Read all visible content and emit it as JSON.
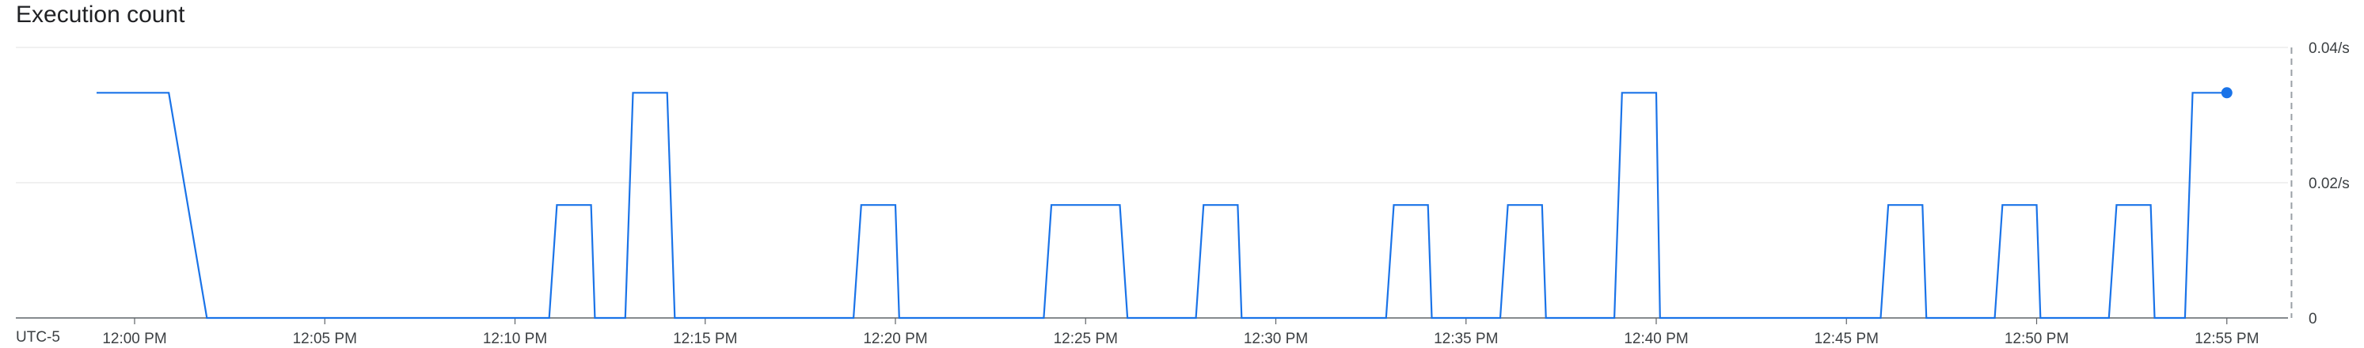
{
  "title": "Execution count",
  "timezone_label": "UTC-5",
  "chart_data": {
    "type": "line",
    "title": "Execution count",
    "xlabel": "",
    "ylabel": "",
    "x_tick_labels": [
      "12:00 PM",
      "12:05 PM",
      "12:10 PM",
      "12:15 PM",
      "12:20 PM",
      "12:25 PM",
      "12:30 PM",
      "12:35 PM",
      "12:40 PM",
      "12:45 PM",
      "12:50 PM",
      "12:55 PM"
    ],
    "y_tick_labels": [
      "0",
      "0.02/s",
      "0.04/s"
    ],
    "ylim": [
      0,
      0.04
    ],
    "xlim_minutes": [
      -3.1,
      56.7
    ],
    "grid": true,
    "line_color": "#1a73e8",
    "series": [
      {
        "points": [
          [
            -1,
            0.0333
          ],
          [
            0.9,
            0.0333
          ],
          [
            1.9,
            0
          ],
          [
            10.9,
            0
          ],
          [
            11.1,
            0.0167
          ],
          [
            12.0,
            0.0167
          ],
          [
            12.1,
            0
          ],
          [
            12.9,
            0
          ],
          [
            13.1,
            0.0333
          ],
          [
            14.0,
            0.0333
          ],
          [
            14.2,
            0
          ],
          [
            18.9,
            0
          ],
          [
            19.1,
            0.0167
          ],
          [
            20.0,
            0.0167
          ],
          [
            20.1,
            0
          ],
          [
            23.9,
            0
          ],
          [
            24.1,
            0.0167
          ],
          [
            25.9,
            0.0167
          ],
          [
            26.1,
            0
          ],
          [
            27.9,
            0
          ],
          [
            28.1,
            0.0167
          ],
          [
            29.0,
            0.0167
          ],
          [
            29.1,
            0
          ],
          [
            32.9,
            0
          ],
          [
            33.1,
            0.0167
          ],
          [
            34.0,
            0.0167
          ],
          [
            34.1,
            0
          ],
          [
            35.9,
            0
          ],
          [
            36.1,
            0.0167
          ],
          [
            37.0,
            0.0167
          ],
          [
            37.1,
            0
          ],
          [
            38.9,
            0
          ],
          [
            39.1,
            0.0333
          ],
          [
            40.0,
            0.0333
          ],
          [
            40.1,
            0
          ],
          [
            45.9,
            0
          ],
          [
            46.1,
            0.0167
          ],
          [
            47.0,
            0.0167
          ],
          [
            47.1,
            0
          ],
          [
            48.9,
            0
          ],
          [
            49.1,
            0.0167
          ],
          [
            50.0,
            0.0167
          ],
          [
            50.1,
            0
          ],
          [
            51.9,
            0
          ],
          [
            52.1,
            0.0167
          ],
          [
            53.0,
            0.0167
          ],
          [
            53.1,
            0
          ],
          [
            53.9,
            0
          ],
          [
            54.1,
            0.0333
          ],
          [
            55.0,
            0.0333
          ]
        ]
      }
    ],
    "end_marker": [
      55.0,
      0.0333
    ]
  }
}
